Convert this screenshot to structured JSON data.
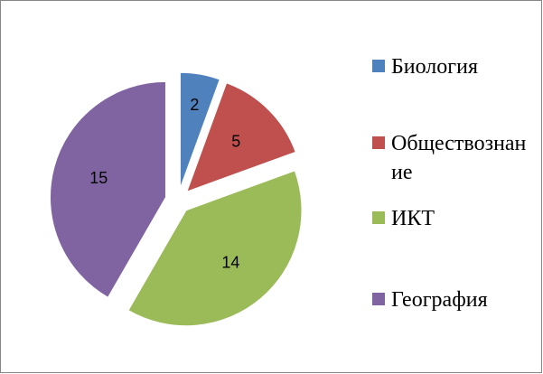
{
  "chart_data": {
    "type": "pie",
    "categories": [
      "Биология",
      "Обществознание",
      "ИКТ",
      "География"
    ],
    "values": [
      2,
      5,
      14,
      15
    ],
    "colors": [
      "#4f81bd",
      "#c0504d",
      "#9bbb59",
      "#8064a2"
    ],
    "legend": "right"
  }
}
